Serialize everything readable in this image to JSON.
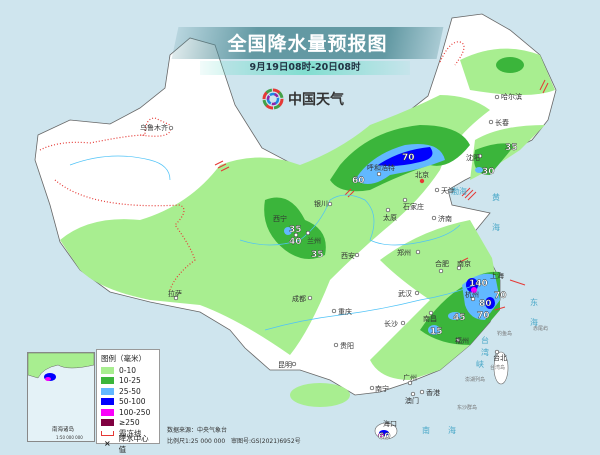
{
  "header": {
    "title": "全国降水量预报图",
    "subtitle": "9月19日08时-20日08时",
    "logo_text": "中国天气"
  },
  "legend": {
    "title": "图例（毫米）",
    "items": [
      {
        "label": "0-10",
        "color": "#a8ee90"
      },
      {
        "label": "10-25",
        "color": "#3bb53b"
      },
      {
        "label": "25-50",
        "color": "#62b8ff"
      },
      {
        "label": "50-100",
        "color": "#0000fe"
      },
      {
        "label": "100-250",
        "color": "#fa00fa"
      },
      {
        "label": "≥250",
        "color": "#800040"
      }
    ],
    "frost_line": "霜冻线",
    "center_value": "降水中心值"
  },
  "source": {
    "data_source": "数据来源：中央气象台",
    "scale": "比例尺1:25 000 000",
    "review_no": "审图号:GS(2021)6952号"
  },
  "inset": {
    "title": "南海诸岛",
    "scale": "1:50 000 000"
  },
  "cities": {
    "urumqi": "乌鲁木齐",
    "lhasa": "拉萨",
    "xining": "西宁",
    "lanzhou": "兰州",
    "yinchuan": "银川",
    "hohhot": "呼和浩特",
    "beijing": "北京",
    "tianjin": "天津",
    "shijiazhuang": "石家庄",
    "taiyuan": "太原",
    "jinan": "济南",
    "xian": "西安",
    "zhengzhou": "郑州",
    "chengdu": "成都",
    "chongqing": "重庆",
    "guiyang": "贵阳",
    "kunming": "昆明",
    "wuhan": "武汉",
    "changsha": "长沙",
    "hefei": "合肥",
    "nanjing": "南京",
    "shanghai": "上海",
    "hangzhou": "杭州",
    "nanchang": "南昌",
    "fuzhou": "福州",
    "taipei": "台北",
    "guangzhou": "广州",
    "hongkong": "香港",
    "macau": "澳门",
    "nanning": "南宁",
    "haikou": "海口",
    "shenyang": "沈阳",
    "changchun": "长春",
    "harbin": "哈尔滨"
  },
  "places": {
    "diaoyu": "钓鱼岛",
    "chiwei": "赤尾屿",
    "taiwan_island": "台湾岛",
    "penghu": "澎湖列岛",
    "dongsha": "东沙群岛"
  },
  "seas": {
    "bohai": "渤海",
    "huang": "黄",
    "hai": "海",
    "dong": "东",
    "nan": "南",
    "tai": "台",
    "wan": "湾",
    "xia": "峡"
  },
  "centers": [
    "70",
    "60",
    "30",
    "35",
    "35",
    "40",
    "35",
    "140",
    "70",
    "80",
    "70",
    "45",
    "15",
    "60"
  ]
}
